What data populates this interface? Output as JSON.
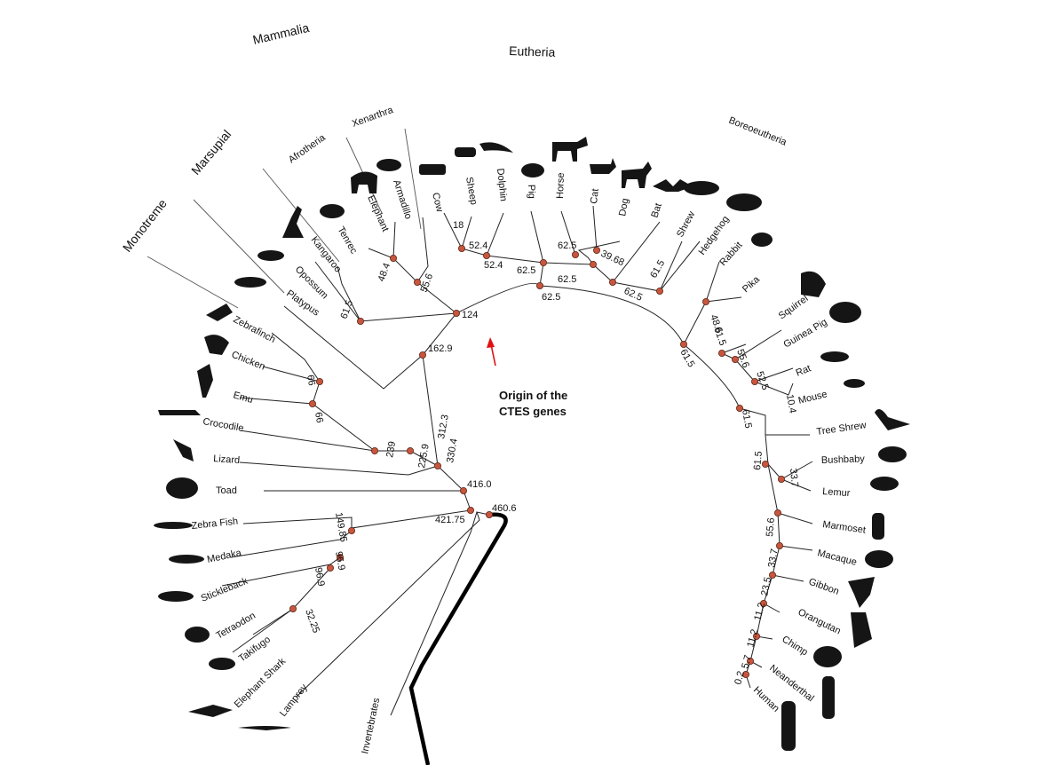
{
  "groups": {
    "mammalia": "Mammalia",
    "eutheria": "Eutheria",
    "monotreme": "Monotreme",
    "marsupial": "Marsupial",
    "afrotheria": "Afrotheria",
    "xenarthra": "Xenarthra",
    "boreoeutheria": "Boreoeutheria"
  },
  "origin": {
    "line1": "Origin of the",
    "line2": "CTES genes"
  },
  "invertebrates": "Invertebrates",
  "species": {
    "platypus": "Platypus",
    "opossum": "Opossum",
    "kangaroo": "Kangaroo",
    "tenrec": "Tenrec",
    "elephant": "Elephant",
    "armadillo": "Armadillo",
    "cow": "Cow",
    "sheep": "Sheep",
    "dolphin": "Dolphin",
    "pig": "Pig",
    "horse": "Horse",
    "cat": "Cat",
    "dog": "Dog",
    "bat": "Bat",
    "shrew": "Shrew",
    "hedgehog": "Hedgehog",
    "rabbit": "Rabbit",
    "pika": "Pika",
    "squirrel": "Squirrel",
    "guinea_pig": "Guinea Pig",
    "rat": "Rat",
    "mouse": "Mouse",
    "tree_shrew": "Tree Shrew",
    "bushbaby": "Bushbaby",
    "lemur": "Lemur",
    "marmoset": "Marmoset",
    "macaque": "Macaque",
    "gibbon": "Gibbon",
    "orangutan": "Orangutan",
    "chimp": "Chimp",
    "neanderthal": "Neanderthal",
    "human": "Human",
    "zebrafinch": "Zebrafinch",
    "chicken": "Chicken",
    "emu": "Emu",
    "crocodile": "Crocodile",
    "lizard": "Lizard",
    "toad": "Toad",
    "zebra_fish": "Zebra Fish",
    "medaka": "Medaka",
    "stickleback": "Stickleback",
    "tetraodon": "Tetraodon",
    "takifugo": "Takifugo",
    "elephant_shark": "Elephant Shark",
    "lamprey": "Lamprey"
  },
  "nodes": {
    "n460_6": "460.6",
    "n421_75": "421.75",
    "n416_0": "416.0",
    "n330_4": "330.4",
    "n312_3": "312.3",
    "n225_9": "225.9",
    "n239": "239",
    "n66a": "66",
    "n66b": "66",
    "n162_9": "162.9",
    "n124": "124",
    "n61_5_mars": "61.5",
    "n48_4": "48.4",
    "n55_6_xen": "55.6",
    "n18": "18",
    "n52_4a": "52.4",
    "n52_4b": "52.4",
    "n62_5a": "62.5",
    "n62_5b": "62.5",
    "n39_68": "39.68",
    "n62_5c": "62.5",
    "n62_5d": "62.5",
    "n61_5_shrew": "61.5",
    "n62_5e": "62.5",
    "n61_5_arc": "61.5",
    "n48_6": "48.6",
    "n61_5_glires": "61.5",
    "n55_6_rod": "55.6",
    "n52_5": "52.5",
    "n10_4": "10.4",
    "n61_5_euarch": "61.5",
    "n61_5_prim": "61.5",
    "n33_7_strep": "33.7",
    "n55_6_prim": "55.6",
    "n33_7_cat": "33.7",
    "n23_5": "23.5",
    "n11_2a": "11.2",
    "n11_2b": "11.2",
    "n5_7": "5.7",
    "n0_2": "0.2",
    "n149_85": "149.85",
    "n96_9a": "96.9",
    "n96_9b": "96.9",
    "n32_25": "32.25"
  }
}
